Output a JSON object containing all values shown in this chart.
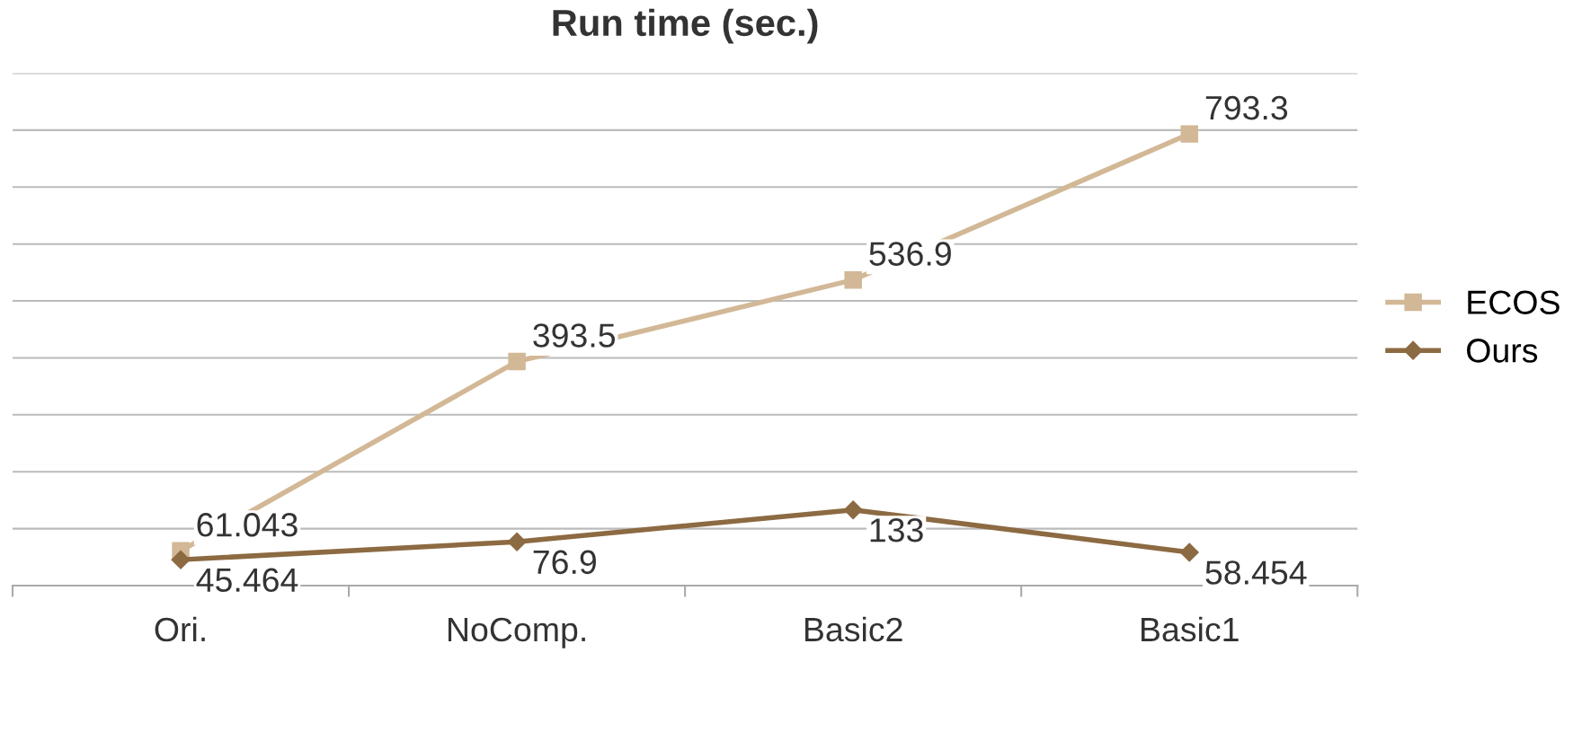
{
  "chart_data": {
    "type": "line",
    "title": "Run time (sec.)",
    "categories": [
      "Ori.",
      "NoComp.",
      "Basic2",
      "Basic1"
    ],
    "series": [
      {
        "name": "ECOS",
        "color": "#d2b896",
        "marker": "square",
        "values": [
          61.043,
          393.5,
          536.9,
          793.3
        ]
      },
      {
        "name": "Ours",
        "color": "#8c6a42",
        "marker": "diamond",
        "values": [
          45.464,
          76.9,
          133,
          58.454
        ]
      }
    ],
    "ylim": [
      0,
      900
    ],
    "yticks": [
      {
        "value": 0,
        "label": null
      },
      {
        "value": 100,
        "label": null
      },
      {
        "value": 200,
        "label": null
      },
      {
        "value": 300,
        "label": null
      },
      {
        "value": 400,
        "label": null
      },
      {
        "value": 500,
        "label": null
      },
      {
        "value": 600,
        "label": null
      },
      {
        "value": 700,
        "label": null
      },
      {
        "value": 800,
        "label": null
      },
      {
        "value": 900,
        "label": null
      }
    ],
    "tick_labels": "x",
    "grid": "y",
    "legend": "right",
    "data_labels": true,
    "line_style": "solid"
  }
}
